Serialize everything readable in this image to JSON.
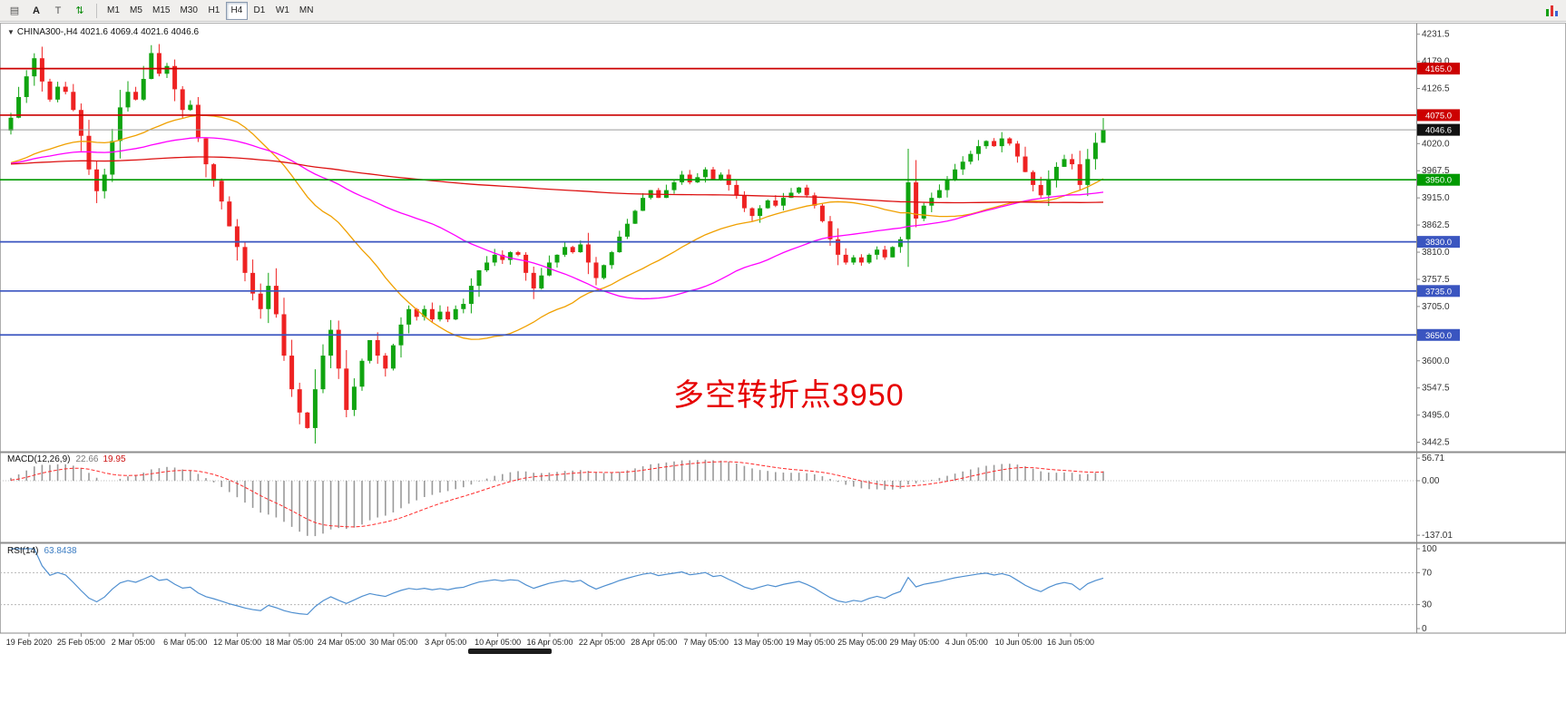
{
  "toolbar": {
    "left_buttons": [
      {
        "name": "charts-grid-icon",
        "glyph": "▤"
      },
      {
        "name": "cursor-tool-button",
        "glyph": "A"
      },
      {
        "name": "text-tool-button",
        "glyph": "T"
      },
      {
        "name": "arrows-indicator-icon",
        "glyph": "⇅"
      }
    ],
    "timeframes": [
      "M1",
      "M5",
      "M15",
      "M30",
      "H1",
      "H4",
      "D1",
      "W1",
      "MN"
    ],
    "active_timeframe": "H4"
  },
  "chart": {
    "title": "CHINA300-,H4 4021.6 4069.4 4021.6 4046.6",
    "annotation_text": "多空转折点3950",
    "annotation_color": "#e60000"
  },
  "chart_data": {
    "type": "candlestick",
    "symbol": "CHINA300-",
    "timeframe": "H4",
    "ohlc_display": {
      "open": "4021.6",
      "high": "4069.4",
      "low": "4021.6",
      "close": "4046.6"
    },
    "last_bar": {
      "open": 4021.6,
      "high": 4069.4,
      "low": 4021.6,
      "close": 4046.6
    },
    "first_open": 4045,
    "history_base": 3980,
    "closes": [
      4070,
      4110,
      4150,
      4185,
      4140,
      4105,
      4130,
      4120,
      4085,
      4035,
      3970,
      3928,
      3960,
      4025,
      4090,
      4120,
      4105,
      4145,
      4195,
      4155,
      4170,
      4125,
      4085,
      4095,
      4030,
      3980,
      3948,
      3908,
      3860,
      3820,
      3770,
      3730,
      3700,
      3745,
      3690,
      3610,
      3545,
      3500,
      3470,
      3545,
      3610,
      3660,
      3585,
      3505,
      3550,
      3600,
      3640,
      3610,
      3585,
      3630,
      3670,
      3700,
      3685,
      3700,
      3680,
      3695,
      3680,
      3700,
      3710,
      3745,
      3775,
      3790,
      3805,
      3795,
      3810,
      3805,
      3770,
      3740,
      3765,
      3790,
      3805,
      3820,
      3810,
      3825,
      3790,
      3760,
      3785,
      3810,
      3840,
      3865,
      3890,
      3915,
      3930,
      3915,
      3930,
      3945,
      3960,
      3945,
      3955,
      3970,
      3950,
      3960,
      3940,
      3920,
      3895,
      3880,
      3895,
      3910,
      3900,
      3915,
      3925,
      3935,
      3920,
      3900,
      3870,
      3835,
      3805,
      3790,
      3800,
      3790,
      3805,
      3815,
      3800,
      3820,
      3835,
      3945,
      3875,
      3900,
      3915,
      3930,
      3950,
      3970,
      3985,
      4000,
      4015,
      4025,
      4015,
      4030,
      4020,
      3995,
      3965,
      3940,
      3920,
      3950,
      3975,
      3990,
      3980,
      3940,
      3990,
      4021.6,
      4046.6
    ],
    "y_range": [
      3426,
      4252
    ],
    "y_ticks": [
      4231.5,
      4179.0,
      4126.5,
      4020.0,
      3967.5,
      3915.0,
      3862.5,
      3810.0,
      3757.5,
      3705.0,
      3600.0,
      3547.5,
      3495.0,
      3442.5
    ],
    "hlines": [
      {
        "value": 4165.0,
        "label": "4165.0",
        "color": "#cc0000",
        "type": "resistance"
      },
      {
        "value": 4075.0,
        "label": "4075.0",
        "color": "#cc0000",
        "type": "resistance"
      },
      {
        "value": 3950.0,
        "label": "3950.0",
        "color": "#009900",
        "type": "pivot"
      },
      {
        "value": 3830.0,
        "label": "3830.0",
        "color": "#3a55c0",
        "type": "support"
      },
      {
        "value": 3735.0,
        "label": "3735.0",
        "color": "#3a55c0",
        "type": "support"
      },
      {
        "value": 3650.0,
        "label": "3650.0",
        "color": "#3a55c0",
        "type": "support"
      }
    ],
    "current_price": 4046.6,
    "current_price_label": "4046.6",
    "up_color": "#10a410",
    "down_color": "#ee2222",
    "moving_averages": [
      {
        "name": "ma-fast-line",
        "period": 30,
        "color": "#f0a000"
      },
      {
        "name": "ma-mid-line",
        "period": 55,
        "color": "#ff00ff"
      },
      {
        "name": "ma-slow-line",
        "period": 200,
        "color": "#dd1111"
      }
    ],
    "macd": {
      "label": "MACD(12,26,9)",
      "value": "22.66",
      "signal_value": "19.95",
      "fast": 12,
      "slow": 26,
      "signal": 9,
      "axis_labels": [
        "56.71",
        "0.00",
        "-137.01"
      ],
      "hist_color": "#9a9a9a",
      "signal_color": "#ff2a2a"
    },
    "rsi": {
      "label": "RSI(14)",
      "value": "63.8438",
      "period": 14,
      "levels": [
        70,
        30
      ],
      "axis_labels": [
        "100",
        "70",
        "30",
        "0"
      ],
      "color": "#4f8fd0"
    },
    "x_labels": [
      "19 Feb 2020",
      "25 Feb 05:00",
      "2 Mar 05:00",
      "6 Mar 05:00",
      "12 Mar 05:00",
      "18 Mar 05:00",
      "24 Mar 05:00",
      "30 Mar 05:00",
      "3 Apr 05:00",
      "10 Apr 05:00",
      "16 Apr 05:00",
      "22 Apr 05:00",
      "28 Apr 05:00",
      "7 May 05:00",
      "13 May 05:00",
      "19 May 05:00",
      "25 May 05:00",
      "29 May 05:00",
      "4 Jun 05:00",
      "10 Jun 05:00",
      "16 Jun 05:00"
    ]
  }
}
